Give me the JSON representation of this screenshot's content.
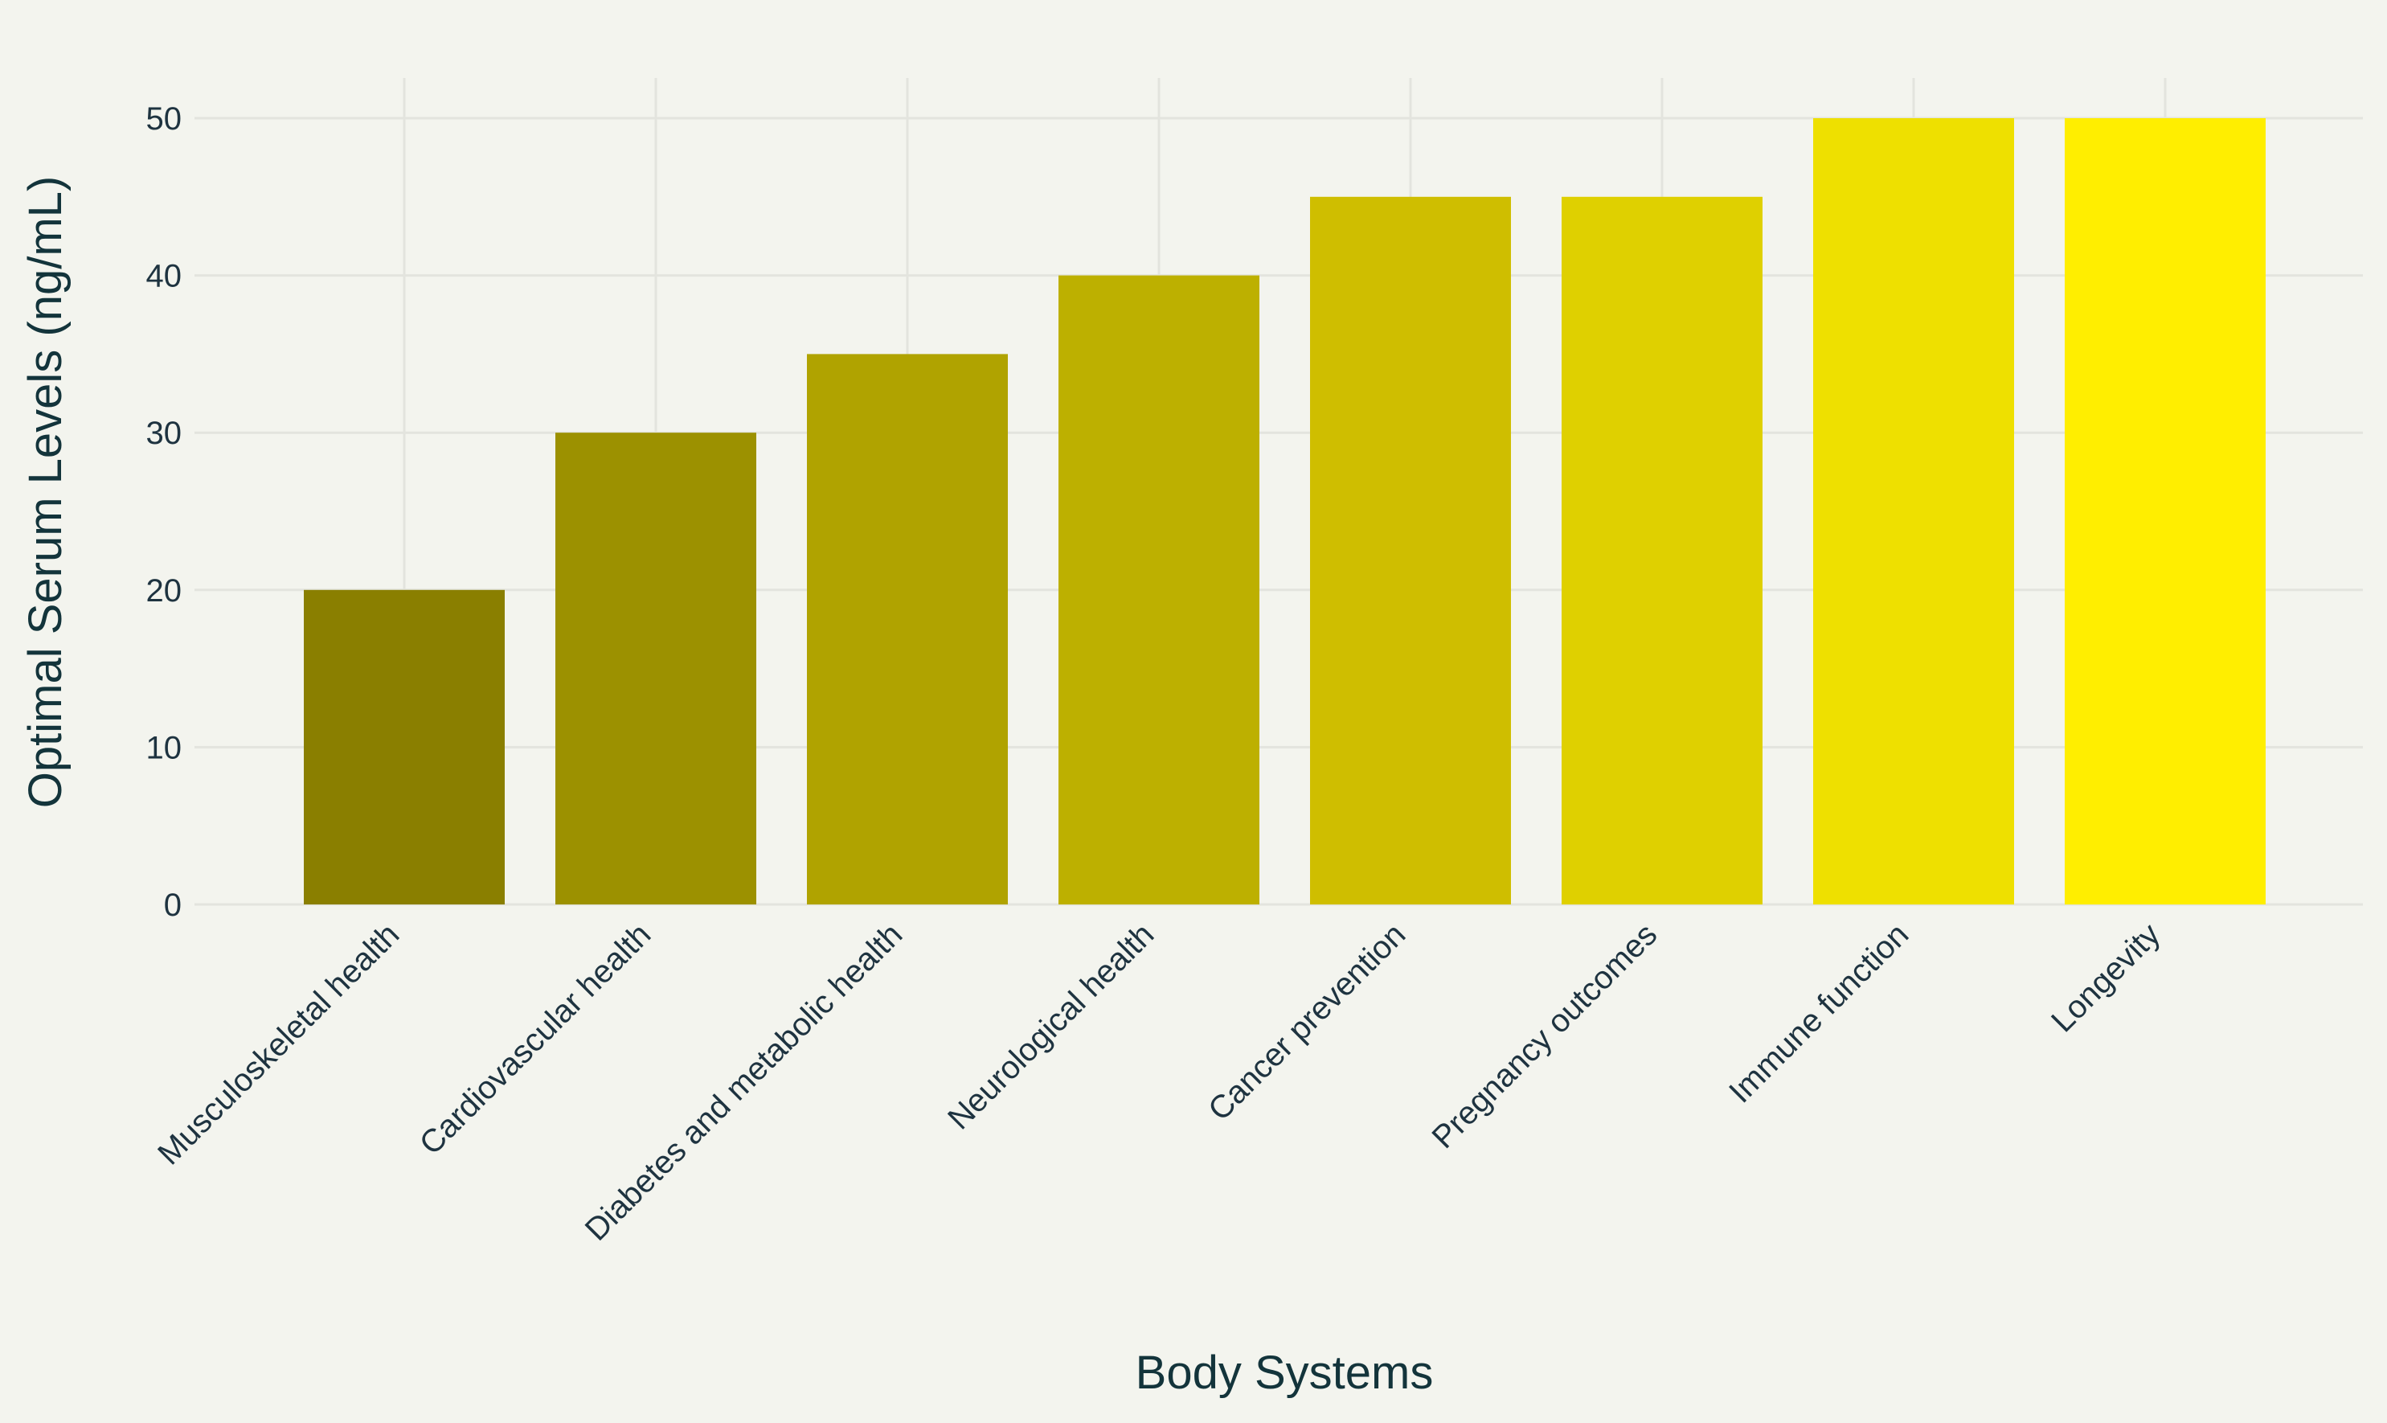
{
  "chart_data": {
    "type": "bar",
    "title": "",
    "xlabel": "Body Systems",
    "ylabel": "Optimal Serum Levels (ng/mL)",
    "categories": [
      "Musculoskeletal health",
      "Cardiovascular health",
      "Diabetes and metabolic health",
      "Neurological health",
      "Cancer prevention",
      "Pregnancy outcomes",
      "Immune function",
      "Longevity"
    ],
    "values": [
      20,
      30,
      35,
      40,
      45,
      45,
      50,
      50
    ],
    "bar_colors": [
      "#8a7f00",
      "#9c9100",
      "#b0a300",
      "#bdb000",
      "#cfbe00",
      "#dfd000",
      "#eee000",
      "#ffee00"
    ],
    "yticks": [
      0,
      10,
      20,
      30,
      40,
      50
    ],
    "ylim": [
      0,
      52.5
    ],
    "grid": true,
    "legend": "none",
    "colors": {
      "background": "#f3f4ee",
      "grid": "#e3e4de",
      "text": "#1e3340"
    }
  }
}
